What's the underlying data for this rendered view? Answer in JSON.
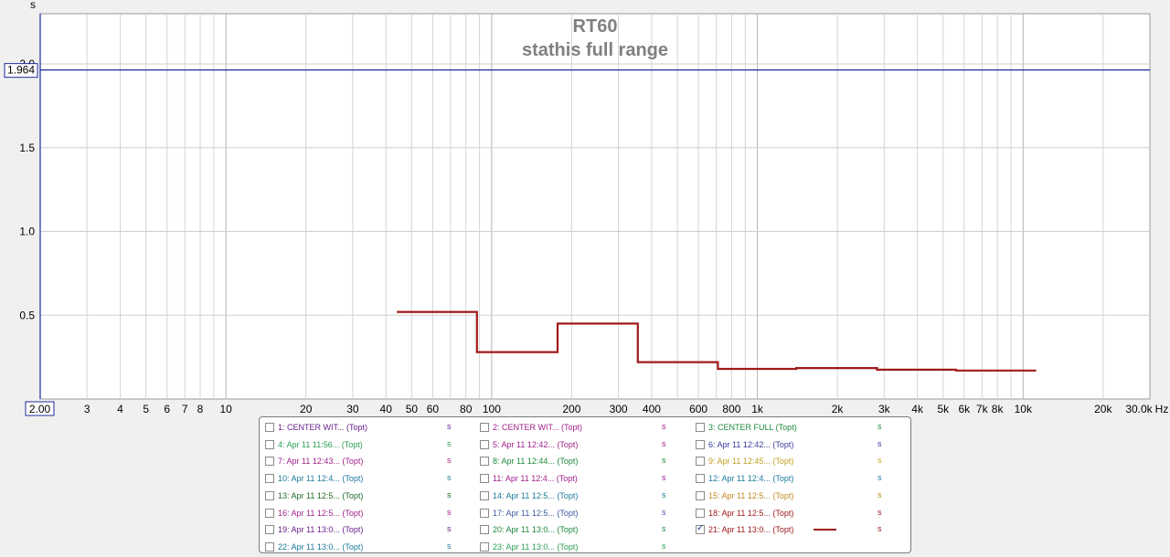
{
  "chart_data": {
    "type": "line",
    "title": "RT60",
    "subtitle": "stathis full range",
    "ylabel": "s",
    "xlabel": "Hz",
    "x_scale": "log",
    "xlim": [
      2,
      30000
    ],
    "ylim": [
      0,
      2.3
    ],
    "x_ticks": [
      {
        "v": 3,
        "label": "3"
      },
      {
        "v": 4,
        "label": "4"
      },
      {
        "v": 5,
        "label": "5"
      },
      {
        "v": 6,
        "label": "6"
      },
      {
        "v": 7,
        "label": "7"
      },
      {
        "v": 8,
        "label": "8"
      },
      {
        "v": 10,
        "label": "10"
      },
      {
        "v": 20,
        "label": "20"
      },
      {
        "v": 30,
        "label": "30"
      },
      {
        "v": 40,
        "label": "40"
      },
      {
        "v": 50,
        "label": "50"
      },
      {
        "v": 60,
        "label": "60"
      },
      {
        "v": 80,
        "label": "80"
      },
      {
        "v": 100,
        "label": "100"
      },
      {
        "v": 200,
        "label": "200"
      },
      {
        "v": 300,
        "label": "300"
      },
      {
        "v": 400,
        "label": "400"
      },
      {
        "v": 600,
        "label": "600"
      },
      {
        "v": 800,
        "label": "800"
      },
      {
        "v": 1000,
        "label": "1k"
      },
      {
        "v": 2000,
        "label": "2k"
      },
      {
        "v": 3000,
        "label": "3k"
      },
      {
        "v": 4000,
        "label": "4k"
      },
      {
        "v": 5000,
        "label": "5k"
      },
      {
        "v": 6000,
        "label": "6k"
      },
      {
        "v": 7000,
        "label": "7k"
      },
      {
        "v": 8000,
        "label": "8k"
      },
      {
        "v": 10000,
        "label": "10k"
      },
      {
        "v": 20000,
        "label": "20k"
      }
    ],
    "x_end_label": "30.0k",
    "x_start_label": "2.00",
    "y_ticks": [
      {
        "v": 0.5,
        "label": "0.5"
      },
      {
        "v": 1.0,
        "label": "1.0"
      },
      {
        "v": 1.5,
        "label": "1.5"
      },
      {
        "v": 2.0,
        "label": "2.0"
      }
    ],
    "cursor_value": "1.964",
    "cursor_y": 1.964,
    "grid": true,
    "series": [
      {
        "color": "#a01a1a",
        "points": [
          [
            44,
            0.52
          ],
          [
            88,
            0.52
          ],
          [
            88,
            0.28
          ],
          [
            177,
            0.28
          ],
          [
            177,
            0.45
          ],
          [
            355,
            0.45
          ],
          [
            355,
            0.22
          ],
          [
            710,
            0.22
          ],
          [
            710,
            0.18
          ],
          [
            1400,
            0.18
          ],
          [
            1400,
            0.185
          ],
          [
            2820,
            0.185
          ],
          [
            2820,
            0.175
          ],
          [
            5600,
            0.175
          ],
          [
            5600,
            0.17
          ],
          [
            11200,
            0.17
          ]
        ]
      }
    ]
  },
  "legend": {
    "items": [
      {
        "label": "1: CENTER WIT... (Topt)",
        "unit": "s",
        "color": "#6a1f8a",
        "checked": false
      },
      {
        "label": "2: CENTER WIT... (Topt)",
        "unit": "s",
        "color": "#a0208a",
        "checked": false
      },
      {
        "label": "3: CENTER FULL (Topt)",
        "unit": "s",
        "color": "#1e8a3a",
        "checked": false
      },
      {
        "label": "4: Apr 11 11:56... (Topt)",
        "unit": "s",
        "color": "#2aa055",
        "checked": false
      },
      {
        "label": "5: Apr 11 12:42... (Topt)",
        "unit": "s",
        "color": "#a0208a",
        "checked": false
      },
      {
        "label": "6: Apr 11 12:42... (Topt)",
        "unit": "s",
        "color": "#3a3aa0",
        "checked": false
      },
      {
        "label": "7: Apr 11 12:43... (Topt)",
        "unit": "s",
        "color": "#a0208a",
        "checked": false
      },
      {
        "label": "8: Apr 11 12:44... (Topt)",
        "unit": "s",
        "color": "#1e8a3a",
        "checked": false
      },
      {
        "label": "9: Apr 11 12:45... (Topt)",
        "unit": "s",
        "color": "#c0a020",
        "checked": false
      },
      {
        "label": "10: Apr 11 12:4... (Topt)",
        "unit": "s",
        "color": "#1a7a9a",
        "checked": false
      },
      {
        "label": "11: Apr 11 12:4... (Topt)",
        "unit": "s",
        "color": "#a0208a",
        "checked": false
      },
      {
        "label": "12: Apr 11 12:4... (Topt)",
        "unit": "s",
        "color": "#1a7a9a",
        "checked": false
      },
      {
        "label": "13: Apr 11 12:5... (Topt)",
        "unit": "s",
        "color": "#1e6a2a",
        "checked": false
      },
      {
        "label": "14: Apr 11 12:5... (Topt)",
        "unit": "s",
        "color": "#1a7a9a",
        "checked": false
      },
      {
        "label": "15: Apr 11 12:5... (Topt)",
        "unit": "s",
        "color": "#c08a20",
        "checked": false
      },
      {
        "label": "16: Apr 11 12:5... (Topt)",
        "unit": "s",
        "color": "#a0208a",
        "checked": false
      },
      {
        "label": "17: Apr 11 12:5... (Topt)",
        "unit": "s",
        "color": "#3a5aa0",
        "checked": false
      },
      {
        "label": "18: Apr 11 12:5... (Topt)",
        "unit": "s",
        "color": "#a01a1a",
        "checked": false
      },
      {
        "label": "19: Apr 11 13:0... (Topt)",
        "unit": "s",
        "color": "#6a1f8a",
        "checked": false
      },
      {
        "label": "20: Apr 11 13:0... (Topt)",
        "unit": "s",
        "color": "#1e8a3a",
        "checked": false
      },
      {
        "label": "21: Apr 11 13:0... (Topt)",
        "unit": "s",
        "color": "#a01a1a",
        "checked": true
      },
      {
        "label": "22: Apr 11 13:0... (Topt)",
        "unit": "s",
        "color": "#1a7a9a",
        "checked": false
      },
      {
        "label": "23: Apr 11 13:0... (Topt)",
        "unit": "s",
        "color": "#2aa055",
        "checked": false
      }
    ]
  }
}
